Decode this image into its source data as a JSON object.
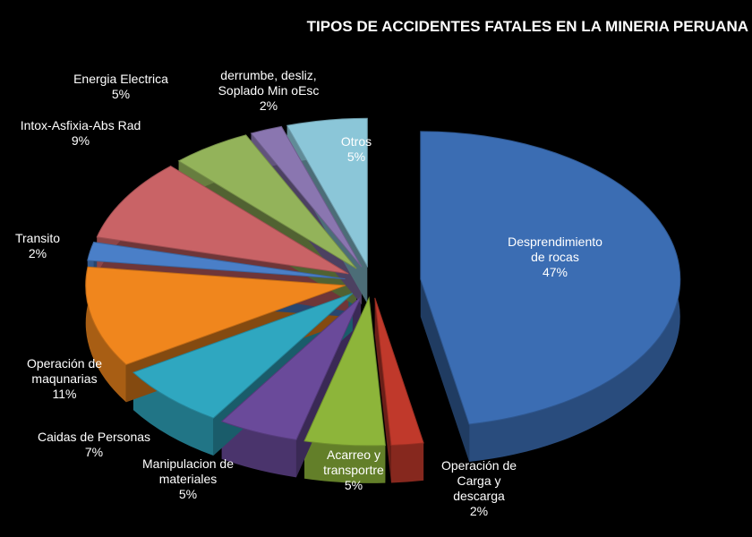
{
  "chart_data": {
    "type": "pie",
    "title": "TIPOS DE ACCIDENTES FATALES EN LA MINERIA PERUANA",
    "categories": [
      "Desprendimiento de rocas",
      "Operación de Carga y descarga",
      "Acarreo y transportre",
      "Manipulacion de materiales",
      "Caidas de Personas",
      "Operación de maqunarias",
      "Transito",
      "Intox-Asfixia-Abs Rad",
      "Energia Electrica",
      "derrumbe, desliz, Soplado Min oEsc",
      "Otros"
    ],
    "values": [
      47,
      2,
      5,
      5,
      7,
      11,
      2,
      9,
      5,
      2,
      5
    ],
    "value_labels": [
      "47%",
      "2%",
      "5%",
      "5%",
      "7%",
      "11%",
      "2%",
      "9%",
      "5%",
      "2%",
      "5%"
    ],
    "colors": [
      "#3b6db3",
      "#c0392b",
      "#8db53a",
      "#6a4a9a",
      "#2fa7c0",
      "#f0861d",
      "#4a7fc8",
      "#c96366",
      "#93b35a",
      "#8a76b0",
      "#8bc6d8"
    ]
  }
}
